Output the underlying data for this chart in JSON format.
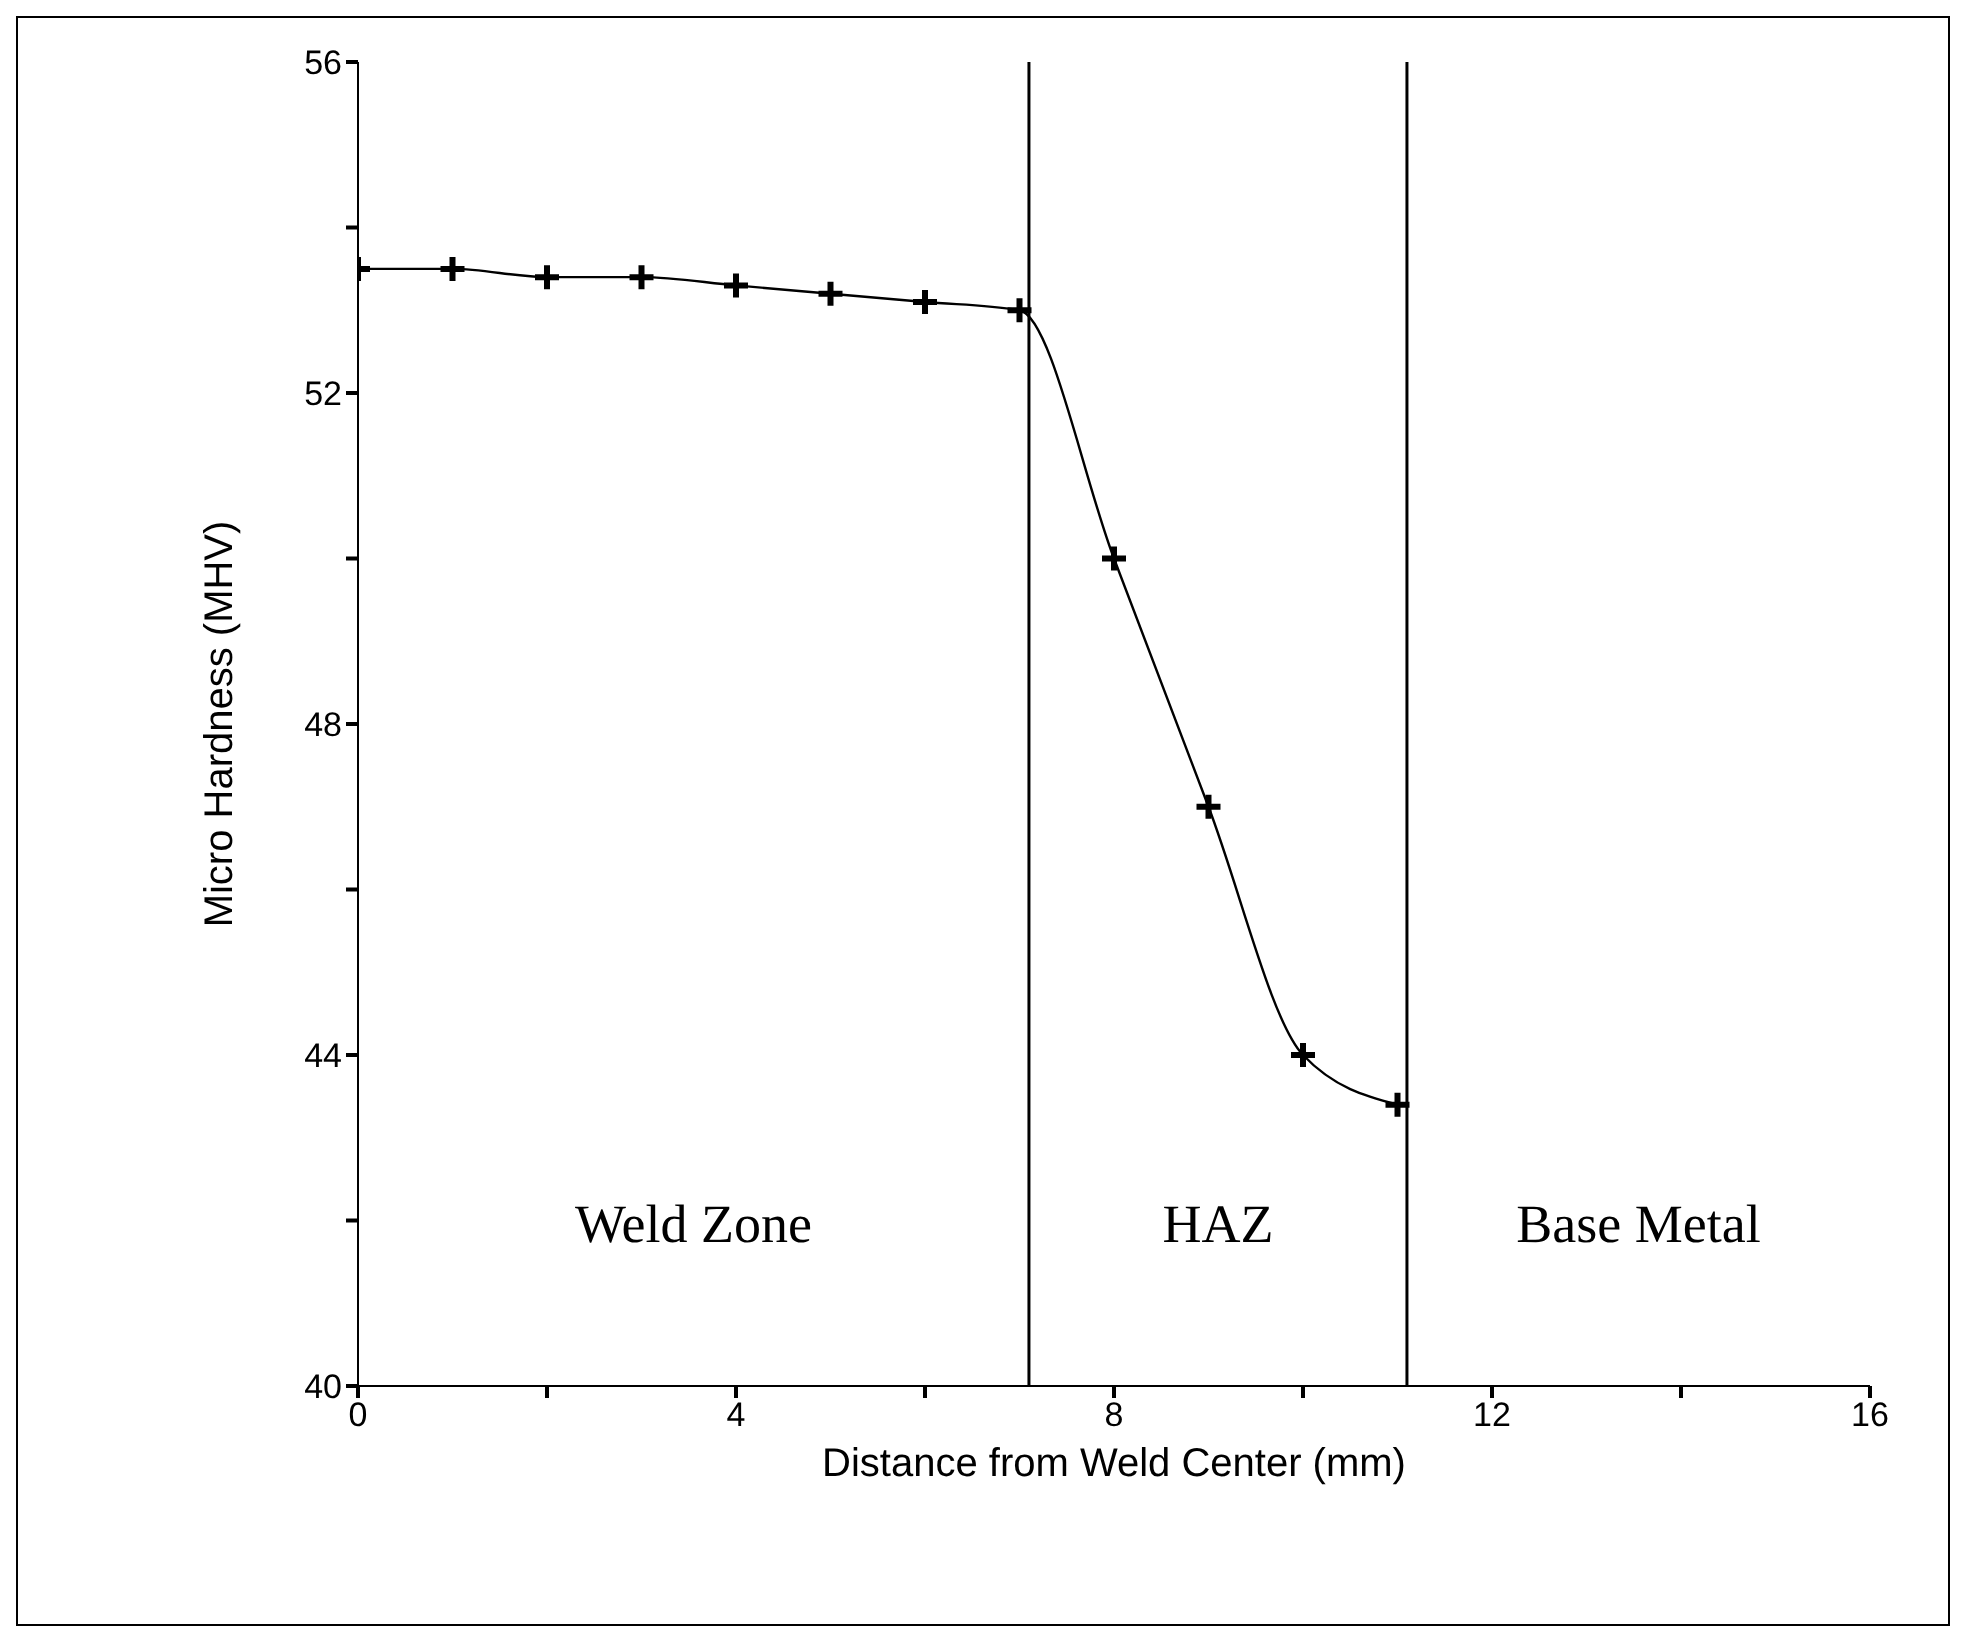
{
  "chart_data": {
    "type": "line",
    "xlabel": "Distance from Weld Center (mm)",
    "ylabel": "Micro Hardness (MHV)",
    "x": [
      0,
      1,
      2,
      3,
      4,
      5,
      6,
      7,
      8,
      9,
      10,
      11
    ],
    "series": [
      {
        "color": "#000000",
        "values": [
          53.5,
          53.5,
          53.4,
          53.4,
          53.3,
          53.2,
          53.1,
          53.0,
          50.0,
          47.0,
          44.0,
          43.4
        ]
      }
    ],
    "xlim": [
      0,
      16
    ],
    "xticks": [
      0,
      {
        "value": 2,
        "label": null
      },
      4,
      {
        "value": 6,
        "label": null
      },
      8,
      {
        "value": 10,
        "label": null
      },
      12,
      {
        "value": 14,
        "label": null
      },
      16
    ],
    "ylim": [
      40,
      56
    ],
    "yticks": [
      40,
      {
        "value": 42,
        "label": null
      },
      44,
      {
        "value": 46,
        "label": null
      },
      48,
      {
        "value": 50,
        "label": null
      },
      52,
      {
        "value": 54,
        "label": null
      },
      56
    ],
    "ref_lines": [
      {
        "axis": "x",
        "value": 7.1,
        "color": "#000000"
      },
      {
        "axis": "x",
        "value": 11.1,
        "color": "#000000"
      }
    ],
    "annotations": [
      "Weld Zone",
      "HAZ",
      "Base   Metal"
    ],
    "marker": "cross",
    "line_style": "solid",
    "grid": false,
    "legend": false
  }
}
